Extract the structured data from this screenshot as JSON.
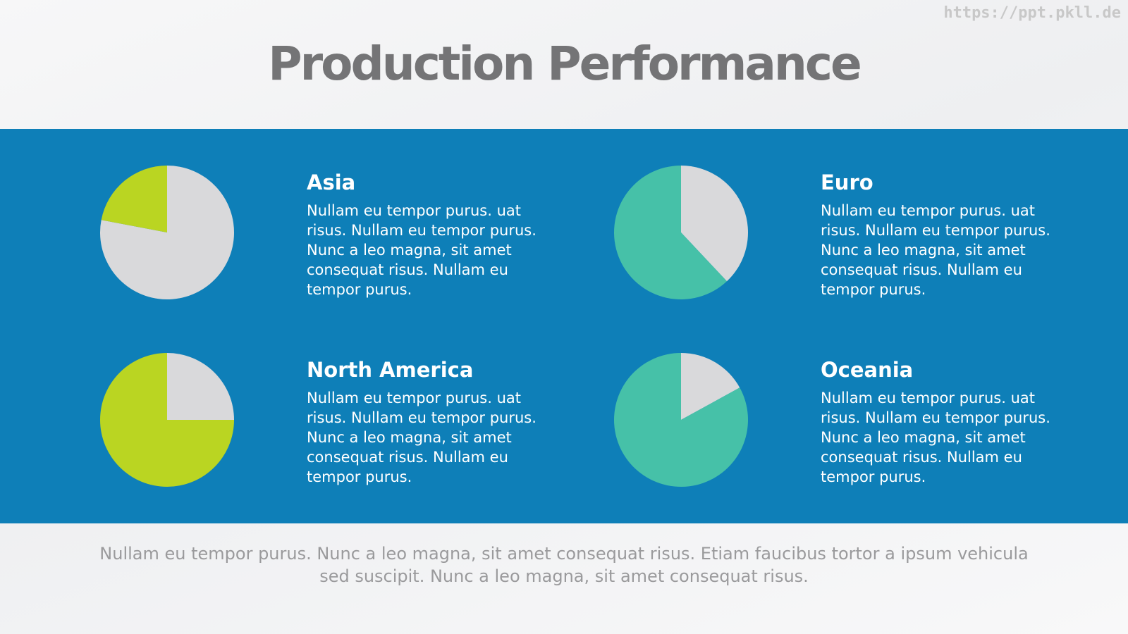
{
  "watermark": "https://ppt.pkll.de",
  "title": "Production Performance",
  "footer": "Nullam eu tempor purus. Nunc a leo magna, sit amet consequat risus. Etiam faucibus tortor a ipsum vehicula sed suscipit. Nunc a leo magna, sit amet consequat risus.",
  "chart_data": [
    {
      "type": "pie",
      "title": "Asia",
      "text": "Nullam eu tempor purus. uat risus. Nullam eu tempor purus. Nunc a leo magna, sit amet consequat risus. Nullam eu tempor purus.",
      "values": [
        78,
        22
      ],
      "colors": [
        "#d9d9db",
        "#bad522"
      ]
    },
    {
      "type": "pie",
      "title": "Euro",
      "text": "Nullam eu tempor purus. uat risus. Nullam eu tempor purus. Nunc a leo magna, sit amet consequat risus. Nullam eu tempor purus.",
      "values": [
        38,
        62
      ],
      "colors": [
        "#d9d9db",
        "#46c1a8"
      ]
    },
    {
      "type": "pie",
      "title": "North America",
      "text": "Nullam eu tempor purus. uat risus. Nullam eu tempor purus. Nunc a leo magna, sit amet consequat risus. Nullam eu tempor purus.",
      "values": [
        25,
        75
      ],
      "colors": [
        "#d9d9db",
        "#bad522"
      ]
    },
    {
      "type": "pie",
      "title": "Oceania",
      "text": "Nullam eu tempor purus. uat risus. Nullam eu tempor purus. Nunc a leo magna, sit amet consequat risus. Nullam eu tempor purus.",
      "values": [
        17,
        83
      ],
      "colors": [
        "#d9d9db",
        "#46c1a8"
      ]
    }
  ]
}
